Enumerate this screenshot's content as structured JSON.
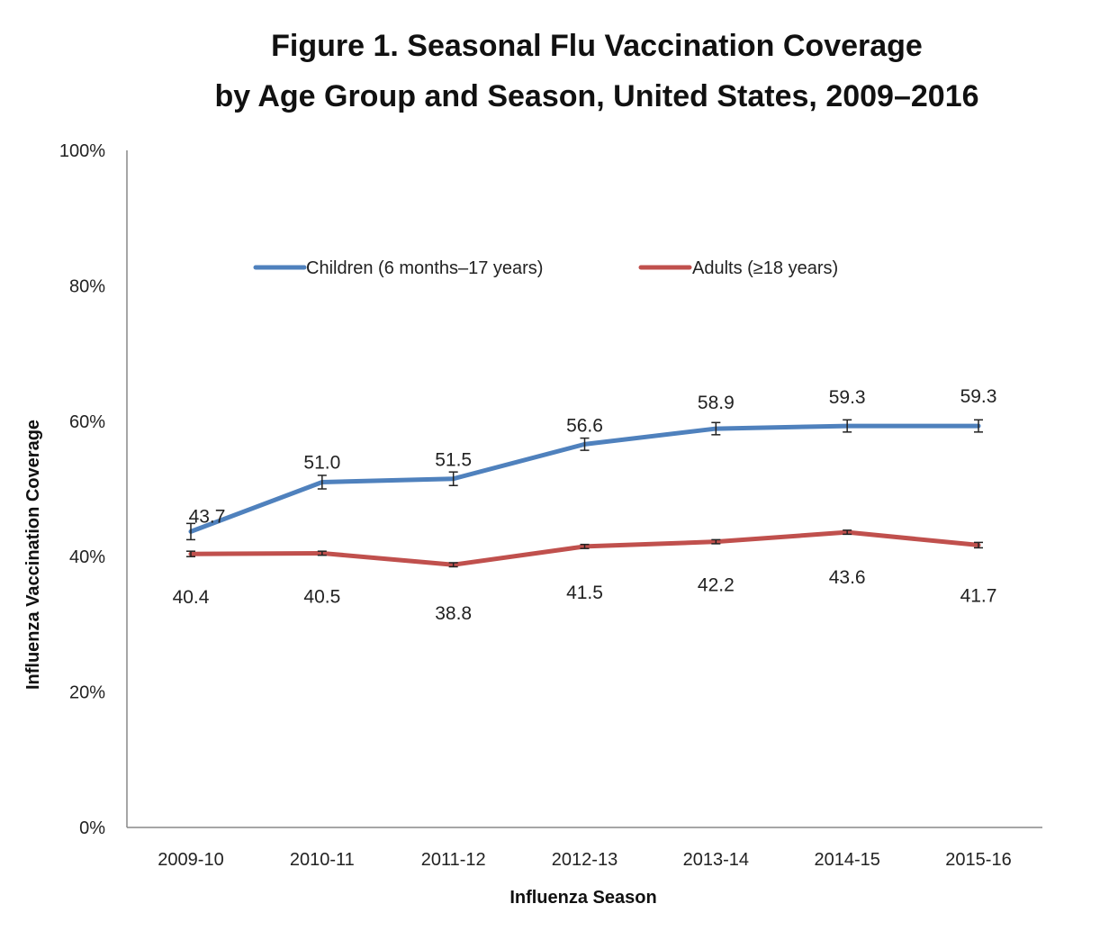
{
  "chart_data": {
    "type": "line",
    "title_line1": "Figure 1. Seasonal Flu Vaccination Coverage",
    "title_line2": "by Age Group and Season, United States, 2009–2016",
    "xlabel": "Influenza Season",
    "ylabel": "Influenza Vaccination Coverage",
    "ylim": [
      0,
      100
    ],
    "yticks": [
      "0%",
      "20%",
      "40%",
      "60%",
      "80%",
      "100%"
    ],
    "categories": [
      "2009-10",
      "2010-11",
      "2011-12",
      "2012-13",
      "2013-14",
      "2014-15",
      "2015-16"
    ],
    "grid": false,
    "legend_position": "top",
    "error_bars": true,
    "series": [
      {
        "name": "Children (6 months–17 years)",
        "color": "#4F81BD",
        "values": [
          43.7,
          51.0,
          51.5,
          56.6,
          58.9,
          59.3,
          59.3
        ],
        "value_labels": [
          "43.7",
          "51.0",
          "51.5",
          "56.6",
          "58.9",
          "59.3",
          "59.3"
        ],
        "error": [
          1.2,
          1.0,
          1.0,
          0.9,
          0.9,
          0.9,
          0.9
        ]
      },
      {
        "name": "Adults (≥18 years)",
        "color": "#C0504D",
        "values": [
          40.4,
          40.5,
          38.8,
          41.5,
          42.2,
          43.6,
          41.7
        ],
        "value_labels": [
          "40.4",
          "40.5",
          "38.8",
          "41.5",
          "42.2",
          "43.6",
          "41.7"
        ],
        "error": [
          0.4,
          0.3,
          0.3,
          0.3,
          0.3,
          0.3,
          0.4
        ]
      }
    ]
  }
}
